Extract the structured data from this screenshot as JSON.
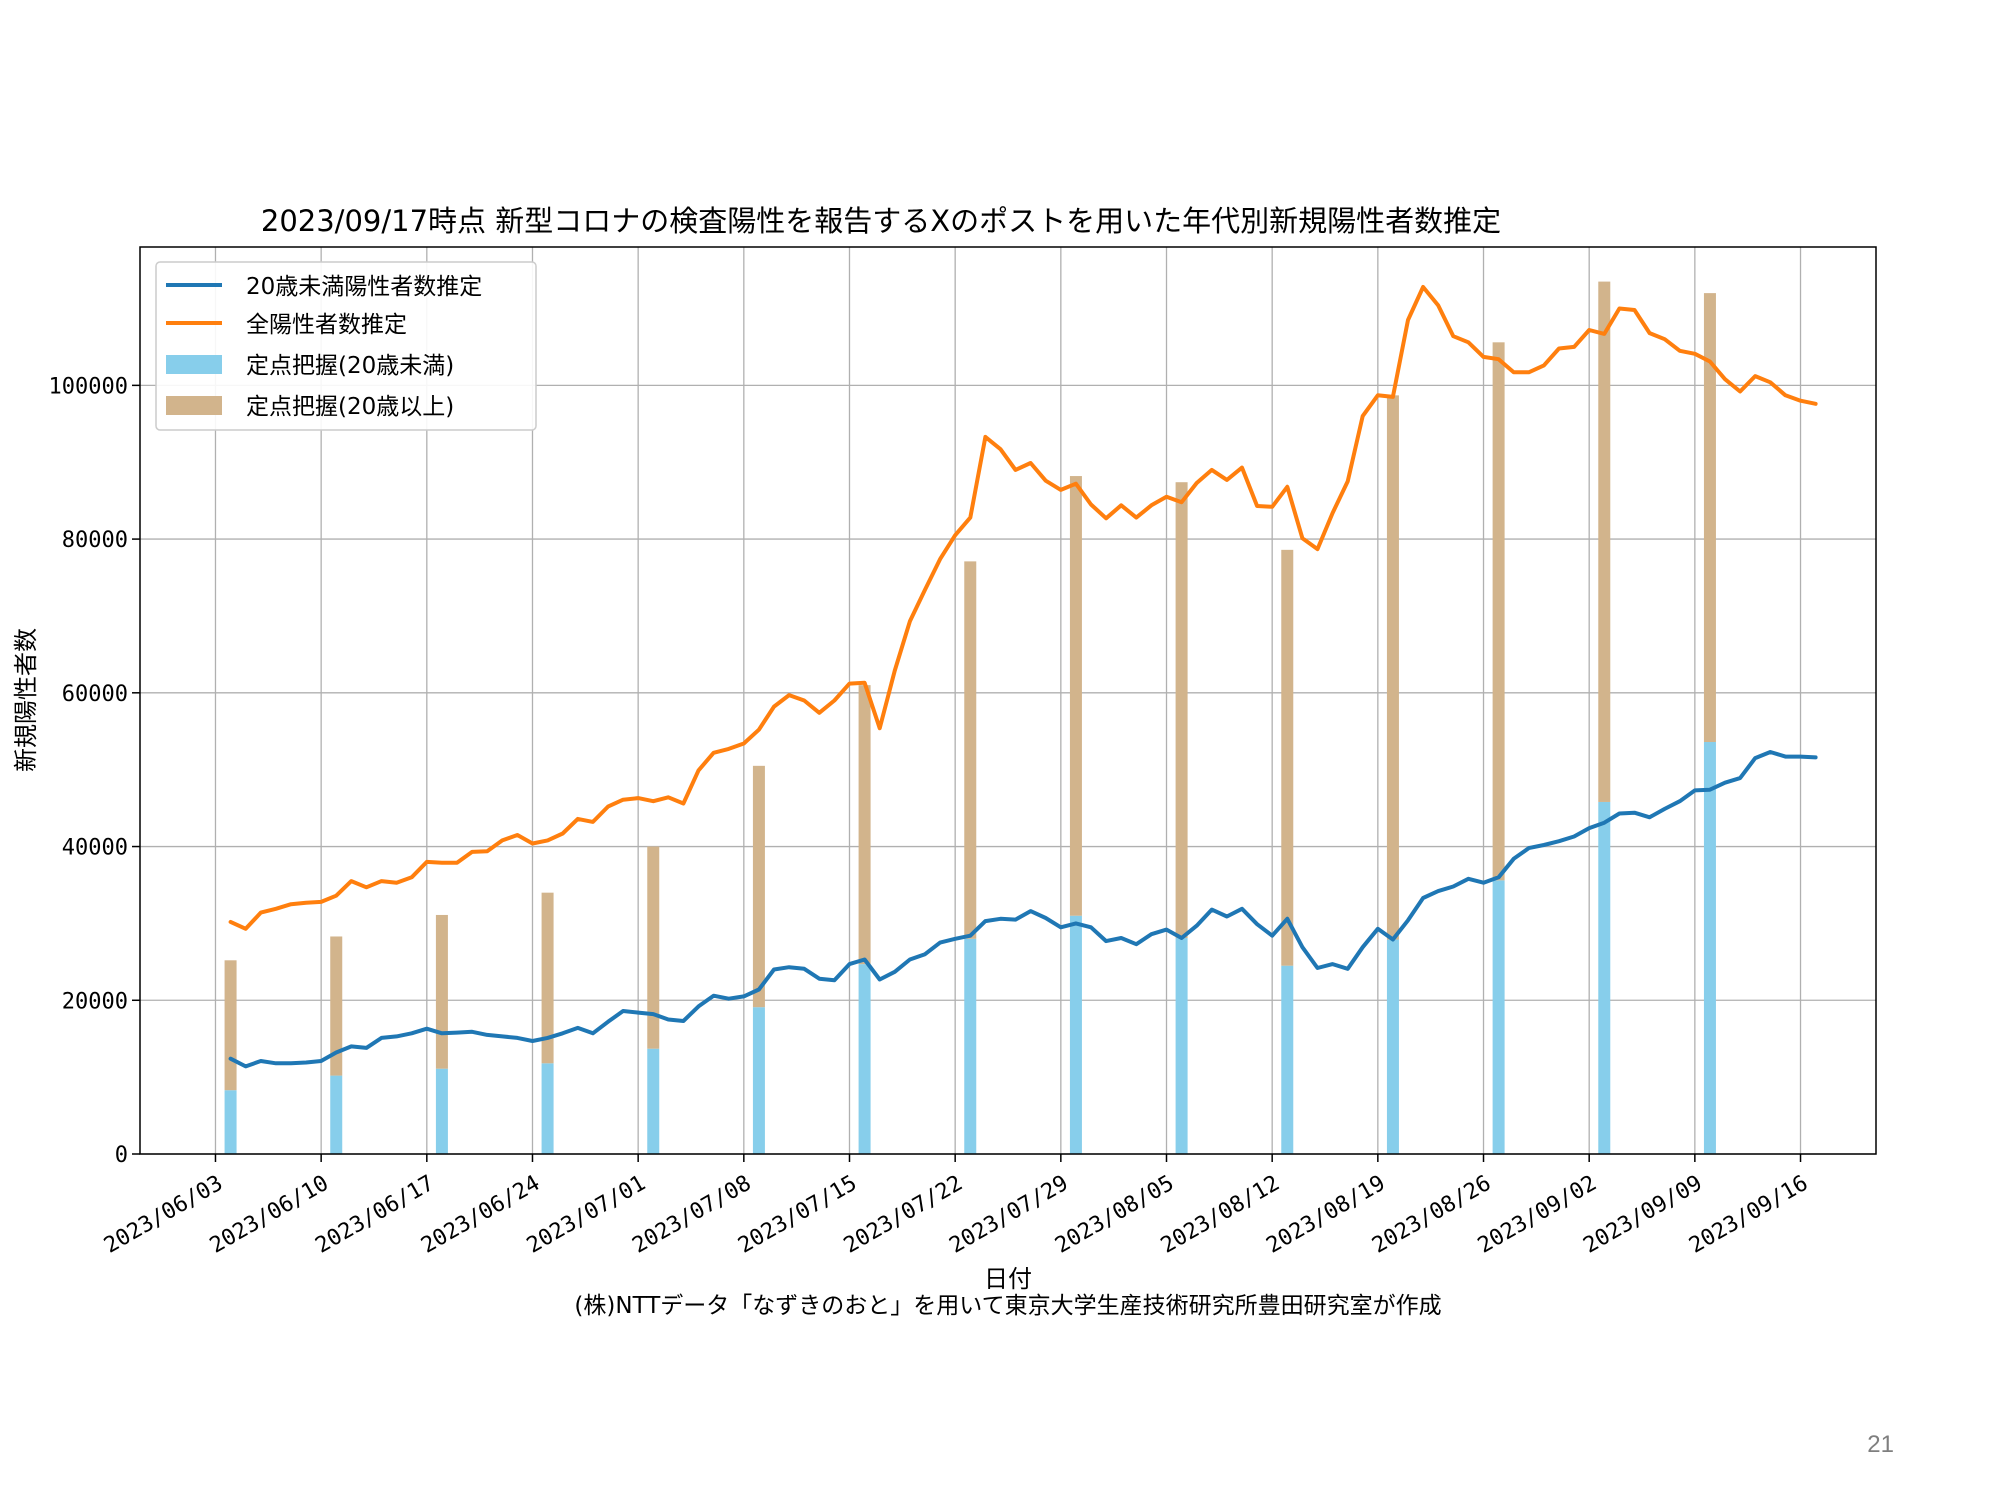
{
  "page_number": "21",
  "credit": "(株)NTTデータ「なずきのおと」を用いて東京大学生産技術研究所豊田研究室が作成",
  "chart_data": {
    "type": "line",
    "title": "2023/09/17時点 新型コロナの検査陽性を報告するXのポストを用いた年代別新規陽性者数推定",
    "xlabel": "日付",
    "ylabel": "新規陽性者数",
    "x_range": [
      "2023-05-29",
      "2023-09-21"
    ],
    "ylim": [
      0,
      118000
    ],
    "grid": true,
    "legend_position": "top-left",
    "x_ticks": [
      "2023/06/03",
      "2023/06/10",
      "2023/06/17",
      "2023/06/24",
      "2023/07/01",
      "2023/07/08",
      "2023/07/15",
      "2023/07/22",
      "2023/07/29",
      "2023/08/05",
      "2023/08/12",
      "2023/08/19",
      "2023/08/26",
      "2023/09/02",
      "2023/09/09",
      "2023/09/16"
    ],
    "y_ticks": [
      "0",
      "20000",
      "40000",
      "60000",
      "80000",
      "100000"
    ],
    "colors": {
      "under20_line": "#1f77b4",
      "total_line": "#ff7f0e",
      "sentinel_under20_bar": "#87ceeb",
      "sentinel_over20_bar": "#d2b48c"
    },
    "line_start_date": "2023/06/04",
    "series": [
      {
        "name": "20歳未満陽性者数推定",
        "kind": "line",
        "values": [
          12400,
          11400,
          12100,
          11800,
          11800,
          11900,
          12100,
          13200,
          14000,
          13800,
          15100,
          15300,
          15700,
          16300,
          15700,
          15800,
          15900,
          15500,
          15300,
          15100,
          14700,
          15100,
          15700,
          16400,
          15700,
          17200,
          18600,
          18400,
          18200,
          17500,
          17300,
          19200,
          20600,
          20200,
          20500,
          21400,
          24000,
          24300,
          24100,
          22800,
          22600,
          24700,
          25300,
          22700,
          23700,
          25300,
          26000,
          27500,
          28000,
          28400,
          30300,
          30600,
          30500,
          31600,
          30700,
          29500,
          30000,
          29500,
          27700,
          28100,
          27300,
          28600,
          29200,
          28100,
          29700,
          31800,
          30900,
          31900,
          29900,
          28400,
          30600,
          26900,
          24200,
          24700,
          24100,
          26900,
          29300,
          27900,
          30400,
          33300,
          34200,
          34800,
          35800,
          35300,
          36000,
          38400,
          39800,
          40200,
          40700,
          41300,
          42400,
          43100,
          44300,
          44400,
          43800,
          44900,
          45900,
          47300,
          47400,
          48300,
          48900,
          51500,
          52300,
          51700,
          51700,
          51600
        ]
      },
      {
        "name": "全陽性者数推定",
        "kind": "line",
        "values": [
          30200,
          29300,
          31400,
          31900,
          32500,
          32700,
          32800,
          33600,
          35500,
          34700,
          35500,
          35300,
          36000,
          38000,
          37900,
          37900,
          39300,
          39400,
          40800,
          41500,
          40400,
          40800,
          41700,
          43600,
          43200,
          45200,
          46100,
          46300,
          45900,
          46400,
          45600,
          49900,
          52200,
          52700,
          53400,
          55200,
          58200,
          59700,
          59000,
          57400,
          59000,
          61200,
          61300,
          55400,
          62900,
          69300,
          73400,
          77400,
          80500,
          82800,
          93300,
          91700,
          89000,
          89900,
          87600,
          86400,
          87200,
          84500,
          82700,
          84400,
          82800,
          84400,
          85500,
          84800,
          87300,
          89000,
          87700,
          89300,
          84300,
          84200,
          86800,
          80100,
          78700,
          83400,
          87500,
          96000,
          98700,
          98500,
          108500,
          112800,
          110400,
          106400,
          105600,
          103700,
          103400,
          101700,
          101700,
          102600,
          104800,
          105000,
          107200,
          106700,
          110000,
          109800,
          106800,
          106000,
          104500,
          104100,
          103100,
          100800,
          99200,
          101200,
          100400,
          98700,
          98000,
          97600
        ]
      }
    ],
    "bars": {
      "dates": [
        "2023/06/04",
        "2023/06/11",
        "2023/06/18",
        "2023/06/25",
        "2023/07/02",
        "2023/07/09",
        "2023/07/16",
        "2023/07/23",
        "2023/07/30",
        "2023/08/06",
        "2023/08/13",
        "2023/08/20",
        "2023/08/27",
        "2023/09/03",
        "2023/09/10"
      ],
      "series": [
        {
          "name": "定点把握(20歳未満)",
          "values": [
            8300,
            10200,
            11100,
            11800,
            13700,
            19100,
            24700,
            28000,
            31000,
            28100,
            24500,
            27900,
            35600,
            45800,
            53600
          ]
        },
        {
          "name": "定点把握(20歳以上)",
          "values": [
            16900,
            18100,
            20000,
            22200,
            26300,
            31400,
            36300,
            49100,
            57200,
            59300,
            54100,
            70800,
            70000,
            67700,
            58400
          ]
        }
      ]
    }
  }
}
